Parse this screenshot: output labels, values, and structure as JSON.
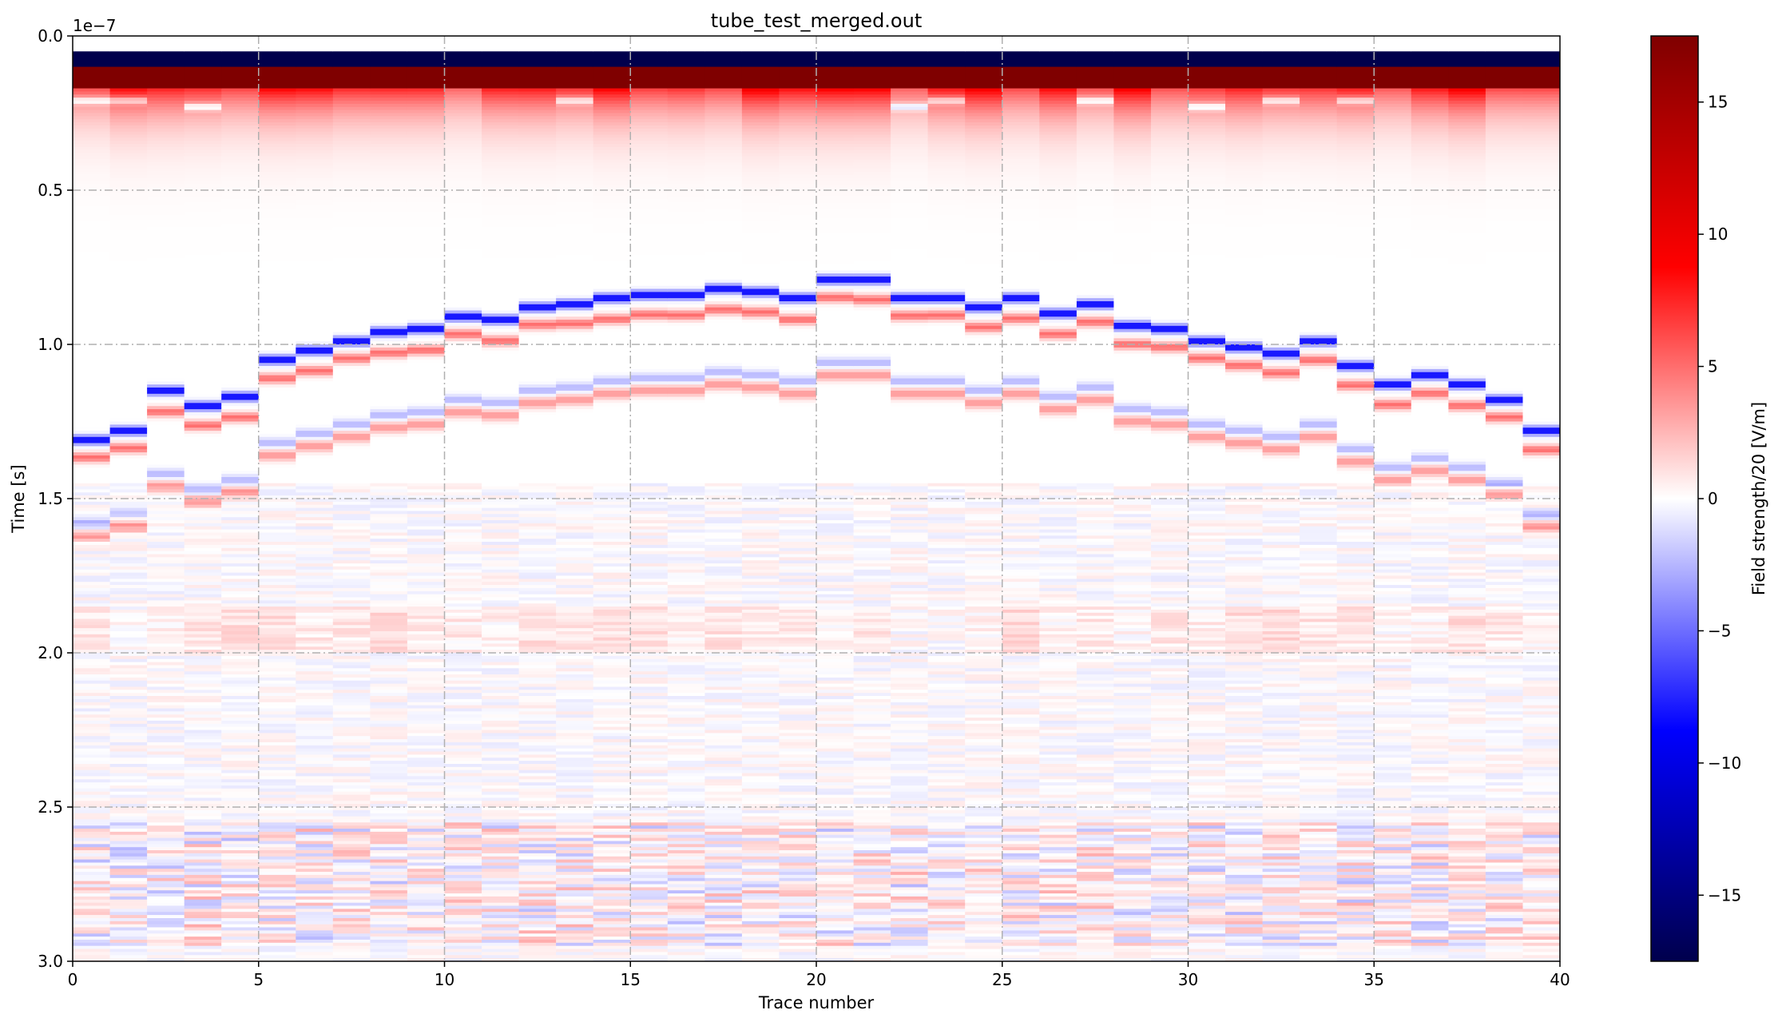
{
  "chart_data": {
    "type": "heatmap",
    "title": "tube_test_merged.out",
    "xlabel": "Trace number",
    "ylabel": "Time [s]",
    "y_offset_label": "1e−7",
    "colorbar_label": "Field strength/20 [V/m]",
    "colormap": "seismic",
    "colors": {
      "min": "#00004c",
      "mid": "#ffffff",
      "max": "#7f0000"
    },
    "xlim": [
      0,
      40
    ],
    "ylim": [
      3.0,
      0.0
    ],
    "y_scale": 1e-07,
    "clim": [
      -17.5,
      17.5
    ],
    "x_ticks": [
      "0",
      "5",
      "10",
      "15",
      "20",
      "25",
      "30",
      "35",
      "40"
    ],
    "y_ticks": [
      "0.0",
      "0.5",
      "1.0",
      "1.5",
      "2.0",
      "2.5",
      "3.0"
    ],
    "colorbar_ticks": [
      "15",
      "10",
      "5",
      "0",
      "−5",
      "−10",
      "−15"
    ],
    "grid": true,
    "n_traces": 40,
    "direct_wave": {
      "negative_band": [
        0.05,
        0.1
      ],
      "positive_band": [
        0.1,
        0.17
      ]
    },
    "reflection_arrival_times": [
      1.31,
      1.28,
      1.15,
      1.2,
      1.17,
      1.05,
      1.02,
      0.99,
      0.96,
      0.95,
      0.91,
      0.92,
      0.88,
      0.87,
      0.85,
      0.84,
      0.84,
      0.82,
      0.83,
      0.85,
      0.79,
      0.79,
      0.85,
      0.85,
      0.88,
      0.85,
      0.9,
      0.87,
      0.94,
      0.95,
      0.99,
      1.01,
      1.03,
      0.99,
      1.07,
      1.13,
      1.1,
      1.13,
      1.18,
      1.28
    ],
    "late_event_band": [
      2.55,
      2.95
    ]
  }
}
